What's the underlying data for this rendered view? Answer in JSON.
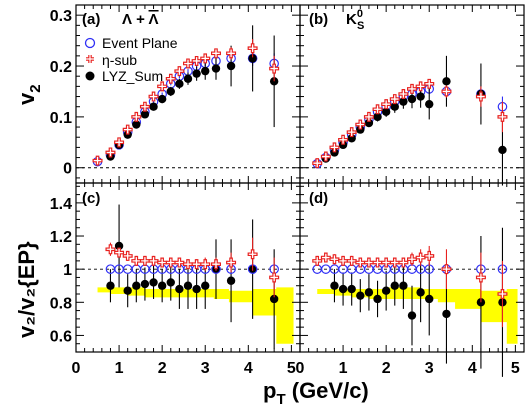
{
  "chart_data": {
    "type": "scatter",
    "x_axis_title": "p",
    "x_axis_title_sub": "T",
    "x_axis_title_units": " (GeV/c)",
    "x_ticks": [
      "0",
      "1",
      "2",
      "3",
      "4",
      "5"
    ],
    "xlim": [
      0,
      5.2
    ],
    "top_ylabel": "v",
    "top_ylabel_sub": "2",
    "bottom_ylabel": "v₂/v₂{EP}",
    "top_ylim": [
      -0.03,
      0.32
    ],
    "top_yticks": [
      "0",
      "0.1",
      "0.2",
      "0.3"
    ],
    "bottom_ylim": [
      0.5,
      1.52
    ],
    "bottom_yticks": [
      "0.6",
      "0.8",
      "1",
      "1.2",
      "1.4"
    ],
    "legend": [
      {
        "name": "Event Plane",
        "marker": "open-circle",
        "color": "#2f2ff5"
      },
      {
        "name": "η-sub",
        "marker": "open-cross",
        "color": "#e8211f"
      },
      {
        "name": "LYZ_Sum",
        "marker": "filled-circle",
        "color": "#000000"
      }
    ],
    "panels": [
      {
        "label": "(a)",
        "particle": "Λ + Λ̄",
        "ep": {
          "x": [
            0.5,
            0.8,
            1.0,
            1.2,
            1.4,
            1.6,
            1.8,
            2.0,
            2.2,
            2.4,
            2.6,
            2.8,
            3.0,
            3.25,
            3.6,
            4.1,
            4.6
          ],
          "y": [
            0.012,
            0.025,
            0.045,
            0.07,
            0.09,
            0.11,
            0.13,
            0.145,
            0.165,
            0.18,
            0.19,
            0.2,
            0.205,
            0.21,
            0.215,
            0.215,
            0.205
          ],
          "err": [
            0.003,
            0.003,
            0.003,
            0.003,
            0.003,
            0.003,
            0.003,
            0.003,
            0.003,
            0.004,
            0.004,
            0.004,
            0.005,
            0.006,
            0.01,
            0.015,
            0.02
          ]
        },
        "eta": {
          "x": [
            0.5,
            0.8,
            1.0,
            1.2,
            1.4,
            1.6,
            1.8,
            2.0,
            2.2,
            2.4,
            2.6,
            2.8,
            3.0,
            3.25,
            3.6,
            4.1,
            4.6
          ],
          "y": [
            0.014,
            0.03,
            0.05,
            0.075,
            0.1,
            0.12,
            0.14,
            0.16,
            0.175,
            0.19,
            0.205,
            0.21,
            0.215,
            0.225,
            0.225,
            0.235,
            0.195
          ],
          "err": [
            0.003,
            0.003,
            0.003,
            0.003,
            0.003,
            0.003,
            0.003,
            0.004,
            0.004,
            0.004,
            0.005,
            0.005,
            0.006,
            0.007,
            0.012,
            0.018,
            0.025
          ]
        },
        "lyz": {
          "x": [
            0.8,
            1.0,
            1.2,
            1.4,
            1.6,
            1.8,
            2.0,
            2.2,
            2.4,
            2.6,
            2.8,
            3.0,
            3.25,
            3.6,
            4.1,
            4.6
          ],
          "y": [
            0.022,
            0.045,
            0.065,
            0.085,
            0.105,
            0.12,
            0.135,
            0.15,
            0.165,
            0.175,
            0.185,
            0.19,
            0.195,
            0.2,
            0.215,
            0.17
          ],
          "err": [
            0.006,
            0.006,
            0.006,
            0.006,
            0.007,
            0.007,
            0.008,
            0.009,
            0.01,
            0.012,
            0.014,
            0.017,
            0.022,
            0.04,
            0.065,
            0.09
          ]
        },
        "ratio_ep": {
          "x": [],
          "y": [],
          "err": []
        },
        "ratio_eta": {
          "x": [],
          "y": [],
          "err": []
        },
        "ratio_lyz": {
          "x": [],
          "y": [],
          "err": []
        }
      },
      {
        "label": "(b)",
        "particle": "K⁰S",
        "ep": {
          "x": [
            0.4,
            0.6,
            0.8,
            1.0,
            1.2,
            1.4,
            1.6,
            1.8,
            2.0,
            2.2,
            2.4,
            2.6,
            2.8,
            3.0,
            3.4,
            4.2,
            4.7
          ],
          "y": [
            0.008,
            0.02,
            0.035,
            0.05,
            0.065,
            0.08,
            0.095,
            0.11,
            0.12,
            0.13,
            0.14,
            0.145,
            0.15,
            0.155,
            0.15,
            0.145,
            0.12
          ],
          "err": [
            0.002,
            0.002,
            0.002,
            0.002,
            0.002,
            0.002,
            0.002,
            0.002,
            0.003,
            0.003,
            0.003,
            0.004,
            0.004,
            0.005,
            0.008,
            0.012,
            0.02
          ]
        },
        "eta": {
          "x": [
            0.4,
            0.6,
            0.8,
            1.0,
            1.2,
            1.4,
            1.6,
            1.8,
            2.0,
            2.2,
            2.4,
            2.6,
            2.8,
            3.0,
            3.4,
            4.2,
            4.7
          ],
          "y": [
            0.009,
            0.022,
            0.04,
            0.055,
            0.07,
            0.085,
            0.1,
            0.115,
            0.125,
            0.135,
            0.145,
            0.155,
            0.16,
            0.165,
            0.15,
            0.14,
            0.1
          ],
          "err": [
            0.002,
            0.002,
            0.002,
            0.002,
            0.002,
            0.003,
            0.003,
            0.003,
            0.003,
            0.004,
            0.004,
            0.005,
            0.006,
            0.007,
            0.012,
            0.02,
            0.03
          ]
        },
        "lyz": {
          "x": [
            0.6,
            0.8,
            1.0,
            1.2,
            1.4,
            1.6,
            1.8,
            2.0,
            2.2,
            2.4,
            2.6,
            2.8,
            3.0,
            3.4,
            4.2,
            4.7
          ],
          "y": [
            0.018,
            0.03,
            0.045,
            0.058,
            0.075,
            0.088,
            0.1,
            0.11,
            0.12,
            0.13,
            0.135,
            0.14,
            0.125,
            0.17,
            0.145,
            0.035
          ],
          "err": [
            0.005,
            0.005,
            0.006,
            0.006,
            0.007,
            0.008,
            0.009,
            0.01,
            0.012,
            0.014,
            0.018,
            0.022,
            0.03,
            0.05,
            0.06,
            0.07
          ]
        },
        "ratio_ep": {
          "x": [],
          "y": [],
          "err": []
        },
        "ratio_eta": {
          "x": [],
          "y": [],
          "err": []
        },
        "ratio_lyz": {
          "x": [],
          "y": [],
          "err": []
        }
      },
      {
        "label": "(c)",
        "ratio_ep": {
          "x": [
            0.8,
            1.0,
            1.2,
            1.4,
            1.6,
            1.8,
            2.0,
            2.2,
            2.4,
            2.6,
            2.8,
            3.0,
            3.25,
            3.6,
            4.1,
            4.6
          ],
          "y": [
            1,
            1,
            1,
            1,
            1,
            1,
            1,
            1,
            1,
            1,
            1,
            1,
            1,
            1,
            1,
            1
          ],
          "err": [
            0,
            0,
            0,
            0,
            0,
            0,
            0,
            0,
            0,
            0,
            0,
            0,
            0,
            0,
            0,
            0
          ]
        },
        "ratio_eta": {
          "x": [
            0.8,
            1.0,
            1.2,
            1.4,
            1.6,
            1.8,
            2.0,
            2.2,
            2.4,
            2.6,
            2.8,
            3.0,
            3.25,
            3.6,
            4.1,
            4.6
          ],
          "y": [
            1.12,
            1.1,
            1.08,
            1.05,
            1.05,
            1.05,
            1.04,
            1.04,
            1.04,
            1.03,
            1.03,
            1.03,
            1.03,
            1.04,
            1.09,
            0.95
          ],
          "err": [
            0.04,
            0.03,
            0.03,
            0.03,
            0.03,
            0.03,
            0.03,
            0.03,
            0.03,
            0.03,
            0.03,
            0.04,
            0.04,
            0.06,
            0.1,
            0.12
          ]
        },
        "ratio_lyz": {
          "x": [
            0.8,
            1.0,
            1.2,
            1.4,
            1.6,
            1.8,
            2.0,
            2.2,
            2.4,
            2.6,
            2.8,
            3.0,
            3.25,
            3.6,
            4.1,
            4.6
          ],
          "y": [
            0.9,
            1.14,
            0.87,
            0.9,
            0.91,
            0.92,
            0.9,
            0.92,
            0.88,
            0.9,
            0.88,
            0.9,
            1.0,
            0.93,
            1.0,
            0.82
          ],
          "err": [
            0.1,
            0.25,
            0.1,
            0.1,
            0.1,
            0.1,
            0.1,
            0.11,
            0.12,
            0.14,
            0.12,
            0.14,
            0.18,
            0.25,
            0.3,
            0.3
          ]
        },
        "sys_x": [
          0.5,
          0.8,
          1.2,
          1.6,
          2.0,
          2.4,
          2.8,
          3.2,
          3.55,
          4.1,
          4.65,
          5.05
        ],
        "sys_low": [
          0.86,
          0.85,
          0.84,
          0.83,
          0.83,
          0.83,
          0.83,
          0.82,
          0.8,
          0.72,
          0.55,
          0.55
        ],
        "sys_high": [
          0.89,
          0.89,
          0.89,
          0.88,
          0.88,
          0.88,
          0.88,
          0.88,
          0.87,
          0.88,
          0.89,
          0.89
        ]
      },
      {
        "label": "(d)",
        "ratio_ep": {
          "x": [
            0.4,
            0.6,
            0.8,
            1.0,
            1.2,
            1.4,
            1.6,
            1.8,
            2.0,
            2.2,
            2.4,
            2.6,
            2.8,
            3.0,
            3.4,
            4.2,
            4.7
          ],
          "y": [
            1,
            1,
            1,
            1,
            1,
            1,
            1,
            1,
            1,
            1,
            1,
            1,
            1,
            1,
            1,
            1,
            1
          ],
          "err": [
            0,
            0,
            0,
            0,
            0,
            0,
            0,
            0,
            0,
            0,
            0,
            0,
            0,
            0,
            0,
            0,
            0
          ]
        },
        "ratio_eta": {
          "x": [
            0.4,
            0.6,
            0.8,
            1.0,
            1.2,
            1.4,
            1.6,
            1.8,
            2.0,
            2.2,
            2.4,
            2.6,
            2.8,
            3.0,
            3.4,
            4.2,
            4.7
          ],
          "y": [
            1.05,
            1.07,
            1.06,
            1.05,
            1.05,
            1.04,
            1.04,
            1.04,
            1.04,
            1.04,
            1.04,
            1.06,
            1.07,
            1.08,
            1.0,
            0.95,
            0.85
          ],
          "err": [
            0.03,
            0.03,
            0.03,
            0.03,
            0.03,
            0.03,
            0.03,
            0.03,
            0.03,
            0.03,
            0.03,
            0.04,
            0.05,
            0.06,
            0.12,
            0.15,
            0.2
          ]
        },
        "ratio_lyz": {
          "x": [
            0.8,
            1.0,
            1.2,
            1.4,
            1.6,
            1.8,
            2.0,
            2.2,
            2.4,
            2.6,
            2.8,
            3.0,
            3.4,
            4.2,
            4.7
          ],
          "y": [
            0.9,
            0.88,
            0.88,
            0.84,
            0.86,
            0.82,
            0.87,
            0.9,
            0.9,
            0.72,
            0.86,
            0.82,
            0.73,
            0.8,
            0.8
          ],
          "err": [
            0.1,
            0.1,
            0.1,
            0.1,
            0.11,
            0.11,
            0.12,
            0.12,
            0.14,
            0.18,
            0.18,
            0.22,
            0.3,
            0.4,
            0.45
          ]
        },
        "sys_x": [
          0.4,
          0.8,
          1.2,
          1.6,
          2.0,
          2.4,
          2.8,
          3.2,
          3.6,
          4.2,
          4.8,
          5.05
        ],
        "sys_low": [
          0.85,
          0.84,
          0.83,
          0.82,
          0.82,
          0.82,
          0.82,
          0.8,
          0.76,
          0.68,
          0.55,
          0.55
        ],
        "sys_high": [
          0.88,
          0.88,
          0.88,
          0.88,
          0.89,
          0.89,
          0.88,
          0.88,
          0.88,
          0.87,
          0.88,
          0.88
        ]
      }
    ],
    "colors": {
      "ep": "#2f2ff5",
      "eta": "#e8211f",
      "lyz": "#000000",
      "sys_band": "#ffff00"
    }
  }
}
